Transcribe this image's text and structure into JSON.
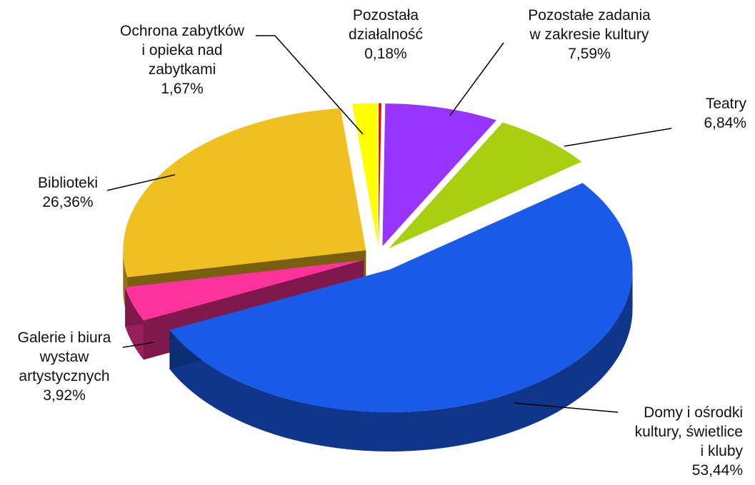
{
  "chart_data": {
    "type": "pie3d",
    "categories": [
      "Pozostała\ndziałalność",
      "Pozostałe zadania\nw zakresie kultury",
      "Teatry",
      "Domy i ośrodki\nkultury, świetlice\ni kluby",
      "Galerie i biura\nwystaw\nartystycznych",
      "Biblioteki",
      "Ochrona zabytków\ni opieka nad\nzabytkami"
    ],
    "values": [
      0.18,
      7.59,
      6.84,
      53.44,
      3.92,
      26.36,
      1.67
    ],
    "value_labels": [
      "0,18%",
      "7,59%",
      "6,84%",
      "53,44%",
      "3,92%",
      "26,36%",
      "1,67%"
    ],
    "colors": [
      "#e01010",
      "#9933ff",
      "#a8d010",
      "#1a5ae8",
      "#ff3399",
      "#f0c020",
      "#ffff00"
    ]
  }
}
